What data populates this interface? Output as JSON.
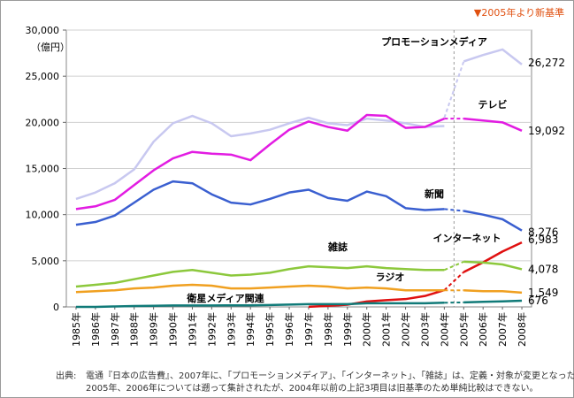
{
  "chart_data": {
    "type": "line",
    "title": "",
    "xlabel": "",
    "ylabel": "",
    "y_unit": "（億円）",
    "top_right_note": "▼2005年より新基準",
    "ylim": [
      0,
      30000
    ],
    "yticks": [
      0,
      5000,
      10000,
      15000,
      20000,
      25000,
      30000
    ],
    "ytick_labels": [
      "0",
      "5,000",
      "10,000",
      "15,000",
      "20,000",
      "25,000",
      "30,000"
    ],
    "grid": true,
    "categories": [
      "1985年",
      "1986年",
      "1987年",
      "1988年",
      "1989年",
      "1990年",
      "1991年",
      "1992年",
      "1993年",
      "1994年",
      "1995年",
      "1996年",
      "1997年",
      "1998年",
      "1999年",
      "2000年",
      "2001年",
      "2002年",
      "2003年",
      "2004年",
      "2005年",
      "2006年",
      "2007年",
      "2008年"
    ],
    "series": [
      {
        "name": "プロモーションメディア",
        "color": "#c8c8f0",
        "old": [
          11700,
          12400,
          13400,
          14900,
          17900,
          19900,
          20700,
          19900,
          18500,
          18800,
          19200,
          19900,
          20500,
          19900,
          19700,
          20400,
          20200,
          19900,
          19500,
          19600,
          null,
          null,
          null,
          null
        ],
        "new": [
          null,
          null,
          null,
          null,
          null,
          null,
          null,
          null,
          null,
          null,
          null,
          null,
          null,
          null,
          null,
          null,
          null,
          null,
          null,
          20500,
          26600,
          27300,
          27900,
          26272
        ],
        "end_label": "26,272"
      },
      {
        "name": "テレビ",
        "color": "#e21ce2",
        "old": [
          10600,
          10900,
          11600,
          13200,
          14800,
          16100,
          16800,
          16600,
          16500,
          15900,
          17600,
          19200,
          20100,
          19500,
          19100,
          20800,
          20700,
          19400,
          19500,
          20400,
          null,
          null,
          null,
          null
        ],
        "new": [
          null,
          null,
          null,
          null,
          null,
          null,
          null,
          null,
          null,
          null,
          null,
          null,
          null,
          null,
          null,
          null,
          null,
          null,
          null,
          20400,
          20400,
          20200,
          20000,
          19092
        ],
        "end_label": "19,092"
      },
      {
        "name": "新聞",
        "color": "#3a5fd0",
        "old": [
          8900,
          9200,
          9900,
          11300,
          12700,
          13600,
          13400,
          12200,
          11300,
          11100,
          11700,
          12400,
          12700,
          11800,
          11500,
          12500,
          12000,
          10700,
          10500,
          10600,
          null,
          null,
          null,
          null
        ],
        "new": [
          null,
          null,
          null,
          null,
          null,
          null,
          null,
          null,
          null,
          null,
          null,
          null,
          null,
          null,
          null,
          null,
          null,
          null,
          null,
          10600,
          10400,
          10000,
          9500,
          8276
        ],
        "end_label": "8,276"
      },
      {
        "name": "インターネット",
        "color": "#e01010",
        "old": [
          null,
          null,
          null,
          null,
          null,
          null,
          null,
          null,
          null,
          null,
          null,
          null,
          16,
          114,
          241,
          590,
          735,
          845,
          1183,
          1814,
          null,
          null,
          null,
          null
        ],
        "new": [
          null,
          null,
          null,
          null,
          null,
          null,
          null,
          null,
          null,
          null,
          null,
          null,
          null,
          null,
          null,
          null,
          null,
          null,
          null,
          1814,
          3777,
          4826,
          6003,
          6983
        ],
        "end_label": "6,983"
      },
      {
        "name": "雑誌",
        "color": "#8cc83c",
        "old": [
          2200,
          2400,
          2600,
          3000,
          3400,
          3800,
          4000,
          3700,
          3400,
          3500,
          3700,
          4100,
          4400,
          4300,
          4200,
          4400,
          4200,
          4100,
          4000,
          4000,
          null,
          null,
          null,
          null
        ],
        "new": [
          null,
          null,
          null,
          null,
          null,
          null,
          null,
          null,
          null,
          null,
          null,
          null,
          null,
          null,
          null,
          null,
          null,
          null,
          null,
          4000,
          4900,
          4800,
          4600,
          4078
        ],
        "end_label": "4,078"
      },
      {
        "name": "ラジオ",
        "color": "#f0a020",
        "old": [
          1600,
          1700,
          1800,
          2000,
          2100,
          2300,
          2400,
          2300,
          2000,
          2000,
          2100,
          2200,
          2300,
          2200,
          2000,
          2100,
          2000,
          1800,
          1800,
          1800,
          null,
          null,
          null,
          null
        ],
        "new": [
          null,
          null,
          null,
          null,
          null,
          null,
          null,
          null,
          null,
          null,
          null,
          null,
          null,
          null,
          null,
          null,
          null,
          null,
          null,
          1800,
          1800,
          1700,
          1700,
          1549
        ],
        "end_label": "1,549"
      },
      {
        "name": "衛星メディア関連",
        "color": "#107a78",
        "old": [
          0,
          0,
          50,
          100,
          120,
          150,
          150,
          160,
          170,
          170,
          200,
          250,
          300,
          300,
          300,
          400,
          400,
          400,
          400,
          450,
          null,
          null,
          null,
          null
        ],
        "new": [
          null,
          null,
          null,
          null,
          null,
          null,
          null,
          null,
          null,
          null,
          null,
          null,
          null,
          null,
          null,
          null,
          null,
          null,
          null,
          450,
          490,
          550,
          600,
          676
        ],
        "end_label": "676"
      }
    ]
  },
  "footnote": {
    "prefix": "出典:",
    "line1": "電通『日本の広告費』、2007年に、「プロモーションメディア」、「インターネット」、「雑誌」は、定義・対象が変更となった。",
    "line2": "2005年、2006年については遡って集計されたが、2004年以前の上記3項目は旧基準のため単純比較はできない。"
  }
}
